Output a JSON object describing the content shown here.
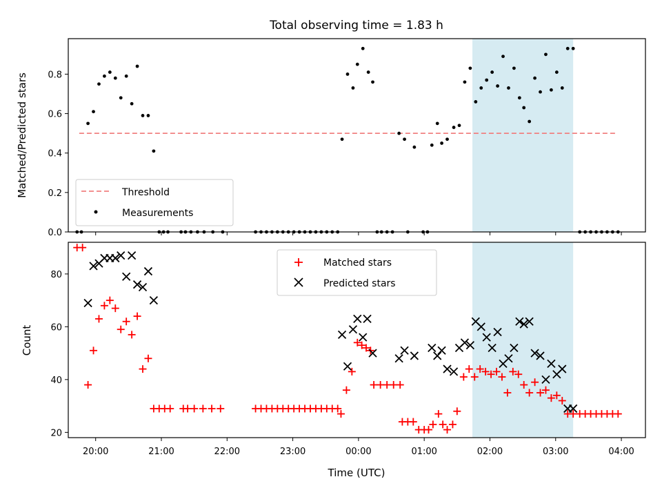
{
  "title": "Total observing time = 1.83 h",
  "colors": {
    "threshold": "#f08080",
    "measurements": "#000000",
    "matched": "#ff0000",
    "predicted": "#000000",
    "highlight": "#add8e6"
  },
  "chart_data": [
    {
      "type": "scatter",
      "ylabel": "Matched/Predicted stars",
      "ylim": [
        0,
        0.98
      ],
      "yticks": [
        0.0,
        0.2,
        0.4,
        0.6,
        0.8
      ],
      "ytick_labels": [
        "0.0",
        "0.2",
        "0.4",
        "0.6",
        "0.8"
      ],
      "legend": {
        "placement": "lower-left",
        "entries": [
          "Threshold",
          "Measurements"
        ]
      },
      "highlight_span": {
        "start": "01:44",
        "end": "03:16"
      },
      "threshold": {
        "name": "Threshold",
        "y": 0.5,
        "x_start": "19:45",
        "x_end": "03:55"
      },
      "series": [
        {
          "name": "Measurements",
          "points": [
            [
              "19:43",
              0
            ],
            [
              "19:47",
              0
            ],
            [
              "19:53",
              0.55
            ],
            [
              "19:58",
              0.61
            ],
            [
              "20:03",
              0.75
            ],
            [
              "20:08",
              0.79
            ],
            [
              "20:13",
              0.81
            ],
            [
              "20:18",
              0.78
            ],
            [
              "20:23",
              0.68
            ],
            [
              "20:28",
              0.79
            ],
            [
              "20:33",
              0.65
            ],
            [
              "20:38",
              0.84
            ],
            [
              "20:43",
              0.59
            ],
            [
              "20:48",
              0.59
            ],
            [
              "20:53",
              0.41
            ],
            [
              "20:58",
              0
            ],
            [
              "21:02",
              0
            ],
            [
              "21:06",
              0
            ],
            [
              "21:18",
              0
            ],
            [
              "21:22",
              0
            ],
            [
              "21:27",
              0
            ],
            [
              "21:33",
              0
            ],
            [
              "21:39",
              0
            ],
            [
              "21:47",
              0
            ],
            [
              "21:56",
              0
            ],
            [
              "22:26",
              0
            ],
            [
              "22:31",
              0
            ],
            [
              "22:36",
              0
            ],
            [
              "22:41",
              0
            ],
            [
              "22:46",
              0
            ],
            [
              "22:51",
              0
            ],
            [
              "22:56",
              0
            ],
            [
              "23:01",
              0
            ],
            [
              "23:06",
              0
            ],
            [
              "23:11",
              0
            ],
            [
              "23:16",
              0
            ],
            [
              "23:21",
              0
            ],
            [
              "23:26",
              0
            ],
            [
              "23:31",
              0
            ],
            [
              "23:36",
              0
            ],
            [
              "23:41",
              0
            ],
            [
              "23:45",
              0.47
            ],
            [
              "23:50",
              0.8
            ],
            [
              "23:55",
              0.73
            ],
            [
              "23:59",
              0.85
            ],
            [
              "00:04",
              0.93
            ],
            [
              "00:09",
              0.81
            ],
            [
              "00:13",
              0.76
            ],
            [
              "00:17",
              0
            ],
            [
              "00:21",
              0
            ],
            [
              "00:26",
              0
            ],
            [
              "00:31",
              0
            ],
            [
              "00:45",
              0
            ],
            [
              "00:59",
              0
            ],
            [
              "01:03",
              0
            ],
            [
              "00:37",
              0.5
            ],
            [
              "00:42",
              0.47
            ],
            [
              "00:51",
              0.43
            ],
            [
              "01:07",
              0.44
            ],
            [
              "01:12",
              0.55
            ],
            [
              "01:16",
              0.45
            ],
            [
              "01:21",
              0.47
            ],
            [
              "01:27",
              0.53
            ],
            [
              "01:32",
              0.54
            ],
            [
              "01:37",
              0.76
            ],
            [
              "01:42",
              0.83
            ],
            [
              "01:47",
              0.66
            ],
            [
              "01:52",
              0.73
            ],
            [
              "01:57",
              0.77
            ],
            [
              "02:02",
              0.81
            ],
            [
              "02:07",
              0.74
            ],
            [
              "02:12",
              0.89
            ],
            [
              "02:17",
              0.73
            ],
            [
              "02:22",
              0.83
            ],
            [
              "02:27",
              0.68
            ],
            [
              "02:31",
              0.63
            ],
            [
              "02:36",
              0.56
            ],
            [
              "02:41",
              0.78
            ],
            [
              "02:46",
              0.71
            ],
            [
              "02:51",
              0.9
            ],
            [
              "02:56",
              0.72
            ],
            [
              "03:01",
              0.81
            ],
            [
              "03:06",
              0.73
            ],
            [
              "03:11",
              0.93
            ],
            [
              "03:16",
              0.93
            ],
            [
              "03:22",
              0
            ],
            [
              "03:27",
              0
            ],
            [
              "03:32",
              0
            ],
            [
              "03:37",
              0
            ],
            [
              "03:42",
              0
            ],
            [
              "03:47",
              0
            ],
            [
              "03:52",
              0
            ],
            [
              "03:57",
              0
            ]
          ]
        }
      ]
    },
    {
      "type": "scatter",
      "xlabel": "Time (UTC)",
      "ylabel": "Count",
      "ylim": [
        18,
        92
      ],
      "yticks": [
        20,
        40,
        60,
        80
      ],
      "ytick_labels": [
        "20",
        "40",
        "60",
        "80"
      ],
      "xticks": [
        "20:00",
        "21:00",
        "22:00",
        "23:00",
        "00:00",
        "01:00",
        "02:00",
        "03:00",
        "04:00"
      ],
      "xlim": [
        "19:35",
        "04:22"
      ],
      "legend": {
        "placement": "top-center",
        "entries": [
          "Matched stars",
          "Predicted stars"
        ]
      },
      "highlight_span": {
        "start": "01:44",
        "end": "03:16"
      },
      "series": [
        {
          "name": "Matched stars",
          "marker": "plus",
          "points": [
            [
              "19:43",
              90
            ],
            [
              "19:48",
              90
            ],
            [
              "19:53",
              38
            ],
            [
              "19:58",
              51
            ],
            [
              "20:03",
              63
            ],
            [
              "20:08",
              68
            ],
            [
              "20:13",
              70
            ],
            [
              "20:18",
              67
            ],
            [
              "20:23",
              59
            ],
            [
              "20:28",
              62
            ],
            [
              "20:33",
              57
            ],
            [
              "20:38",
              64
            ],
            [
              "20:43",
              44
            ],
            [
              "20:48",
              48
            ],
            [
              "20:53",
              29
            ],
            [
              "20:58",
              29
            ],
            [
              "21:03",
              29
            ],
            [
              "21:08",
              29
            ],
            [
              "21:20",
              29
            ],
            [
              "21:24",
              29
            ],
            [
              "21:30",
              29
            ],
            [
              "21:38",
              29
            ],
            [
              "21:46",
              29
            ],
            [
              "21:54",
              29
            ],
            [
              "22:26",
              29
            ],
            [
              "22:31",
              29
            ],
            [
              "22:36",
              29
            ],
            [
              "22:41",
              29
            ],
            [
              "22:46",
              29
            ],
            [
              "22:51",
              29
            ],
            [
              "22:56",
              29
            ],
            [
              "23:01",
              29
            ],
            [
              "23:06",
              29
            ],
            [
              "23:11",
              29
            ],
            [
              "23:16",
              29
            ],
            [
              "23:21",
              29
            ],
            [
              "23:26",
              29
            ],
            [
              "23:31",
              29
            ],
            [
              "23:36",
              29
            ],
            [
              "23:41",
              29
            ],
            [
              "23:44",
              27
            ],
            [
              "23:49",
              36
            ],
            [
              "23:54",
              43
            ],
            [
              "23:59",
              54
            ],
            [
              "00:03",
              53
            ],
            [
              "00:07",
              52
            ],
            [
              "00:11",
              51
            ],
            [
              "00:14",
              38
            ],
            [
              "00:20",
              38
            ],
            [
              "00:26",
              38
            ],
            [
              "00:32",
              38
            ],
            [
              "00:38",
              38
            ],
            [
              "00:40",
              24
            ],
            [
              "00:45",
              24
            ],
            [
              "00:50",
              24
            ],
            [
              "00:55",
              21
            ],
            [
              "01:00",
              21
            ],
            [
              "01:04",
              21
            ],
            [
              "01:08",
              23
            ],
            [
              "01:13",
              27
            ],
            [
              "01:17",
              23
            ],
            [
              "01:21",
              21
            ],
            [
              "01:26",
              23
            ],
            [
              "01:30",
              28
            ],
            [
              "01:36",
              41
            ],
            [
              "01:41",
              44
            ],
            [
              "01:46",
              41
            ],
            [
              "01:51",
              44
            ],
            [
              "01:56",
              43
            ],
            [
              "02:01",
              42
            ],
            [
              "02:06",
              43
            ],
            [
              "02:11",
              41
            ],
            [
              "02:16",
              35
            ],
            [
              "02:21",
              43
            ],
            [
              "02:26",
              42
            ],
            [
              "02:31",
              38
            ],
            [
              "02:36",
              35
            ],
            [
              "02:41",
              39
            ],
            [
              "02:46",
              35
            ],
            [
              "02:51",
              36
            ],
            [
              "02:56",
              33
            ],
            [
              "03:01",
              34
            ],
            [
              "03:06",
              32
            ],
            [
              "03:11",
              27
            ],
            [
              "03:16",
              27
            ],
            [
              "03:22",
              27
            ],
            [
              "03:27",
              27
            ],
            [
              "03:32",
              27
            ],
            [
              "03:37",
              27
            ],
            [
              "03:42",
              27
            ],
            [
              "03:47",
              27
            ],
            [
              "03:52",
              27
            ],
            [
              "03:57",
              27
            ]
          ]
        },
        {
          "name": "Predicted stars",
          "marker": "x",
          "points": [
            [
              "19:53",
              69
            ],
            [
              "19:58",
              83
            ],
            [
              "20:03",
              84
            ],
            [
              "20:08",
              86
            ],
            [
              "20:13",
              86
            ],
            [
              "20:18",
              86
            ],
            [
              "20:23",
              87
            ],
            [
              "20:28",
              79
            ],
            [
              "20:33",
              87
            ],
            [
              "20:38",
              76
            ],
            [
              "20:43",
              75
            ],
            [
              "20:48",
              81
            ],
            [
              "20:53",
              70
            ],
            [
              "23:45",
              57
            ],
            [
              "23:50",
              45
            ],
            [
              "23:55",
              59
            ],
            [
              "23:59",
              63
            ],
            [
              "00:04",
              56
            ],
            [
              "00:08",
              63
            ],
            [
              "00:13",
              50
            ],
            [
              "00:37",
              48
            ],
            [
              "00:42",
              51
            ],
            [
              "00:51",
              49
            ],
            [
              "01:07",
              52
            ],
            [
              "01:12",
              49
            ],
            [
              "01:16",
              51
            ],
            [
              "01:21",
              44
            ],
            [
              "01:27",
              43
            ],
            [
              "01:32",
              52
            ],
            [
              "01:37",
              54
            ],
            [
              "01:42",
              53
            ],
            [
              "01:47",
              62
            ],
            [
              "01:52",
              60
            ],
            [
              "01:57",
              56
            ],
            [
              "02:02",
              52
            ],
            [
              "02:07",
              58
            ],
            [
              "02:12",
              46
            ],
            [
              "02:17",
              48
            ],
            [
              "02:22",
              52
            ],
            [
              "02:27",
              62
            ],
            [
              "02:31",
              61
            ],
            [
              "02:36",
              62
            ],
            [
              "02:41",
              50
            ],
            [
              "02:46",
              49
            ],
            [
              "02:51",
              40
            ],
            [
              "02:56",
              46
            ],
            [
              "03:01",
              42
            ],
            [
              "03:06",
              44
            ],
            [
              "03:11",
              29
            ],
            [
              "03:16",
              29
            ]
          ]
        }
      ]
    }
  ]
}
